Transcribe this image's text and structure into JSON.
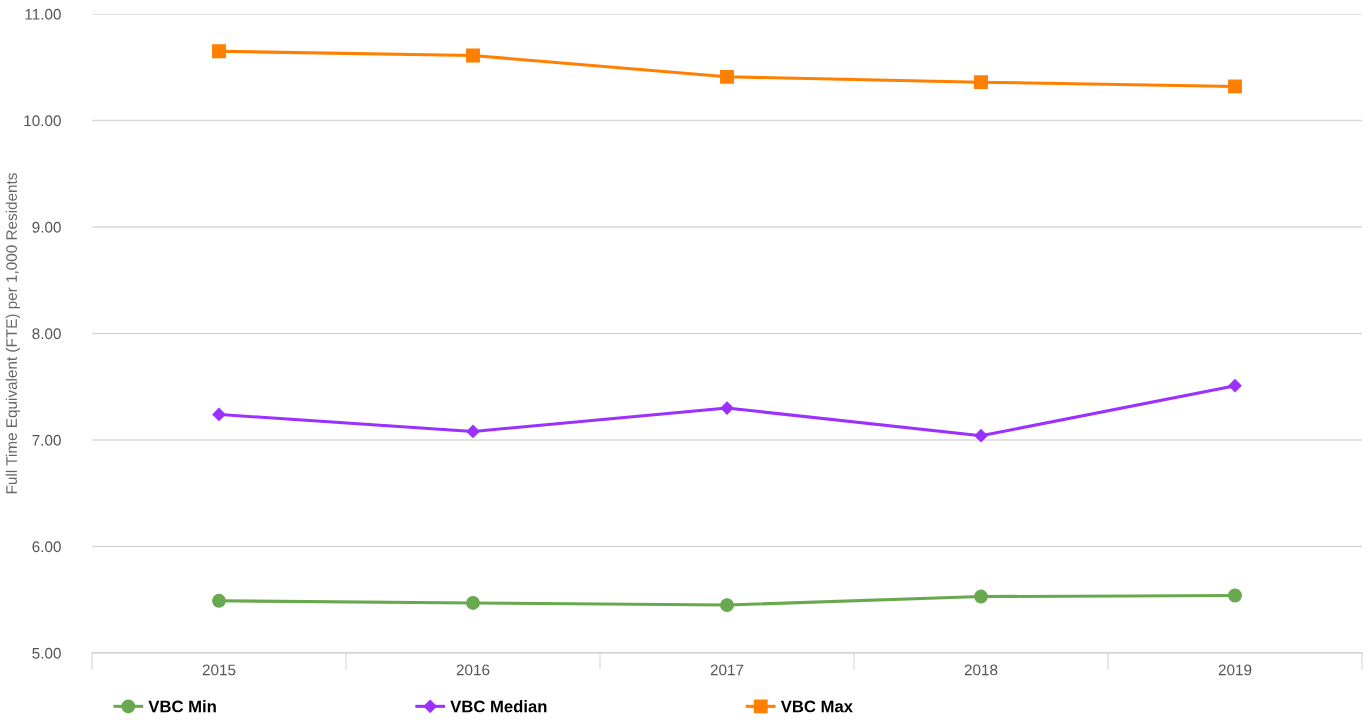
{
  "chart_data": {
    "type": "line",
    "ylabel": "Full Time Equivalent (FTE) per 1,000 Residents",
    "categories": [
      "2015",
      "2016",
      "2017",
      "2018",
      "2019"
    ],
    "series": [
      {
        "name": "VBC Min",
        "color": "#6aa84f",
        "marker": "circle",
        "values": [
          5.49,
          5.47,
          5.45,
          5.53,
          5.54
        ]
      },
      {
        "name": "VBC Median",
        "color": "#9b30ff",
        "marker": "diamond",
        "values": [
          7.24,
          7.08,
          7.3,
          7.04,
          7.51
        ]
      },
      {
        "name": "VBC Max",
        "color": "#ff8000",
        "marker": "square",
        "values": [
          10.65,
          10.61,
          10.41,
          10.36,
          10.32
        ]
      }
    ],
    "ylim": [
      5,
      11
    ],
    "yticks": [
      {
        "value": 5,
        "label": "5.00"
      },
      {
        "value": 6,
        "label": "6.00"
      },
      {
        "value": 7,
        "label": "7.00"
      },
      {
        "value": 8,
        "label": "8.00"
      },
      {
        "value": 9,
        "label": "9.00"
      },
      {
        "value": 10,
        "label": "10.00"
      },
      {
        "value": 11,
        "label": "11.00"
      }
    ],
    "grid": "y",
    "legend": "bottom",
    "line_style": "solid"
  }
}
